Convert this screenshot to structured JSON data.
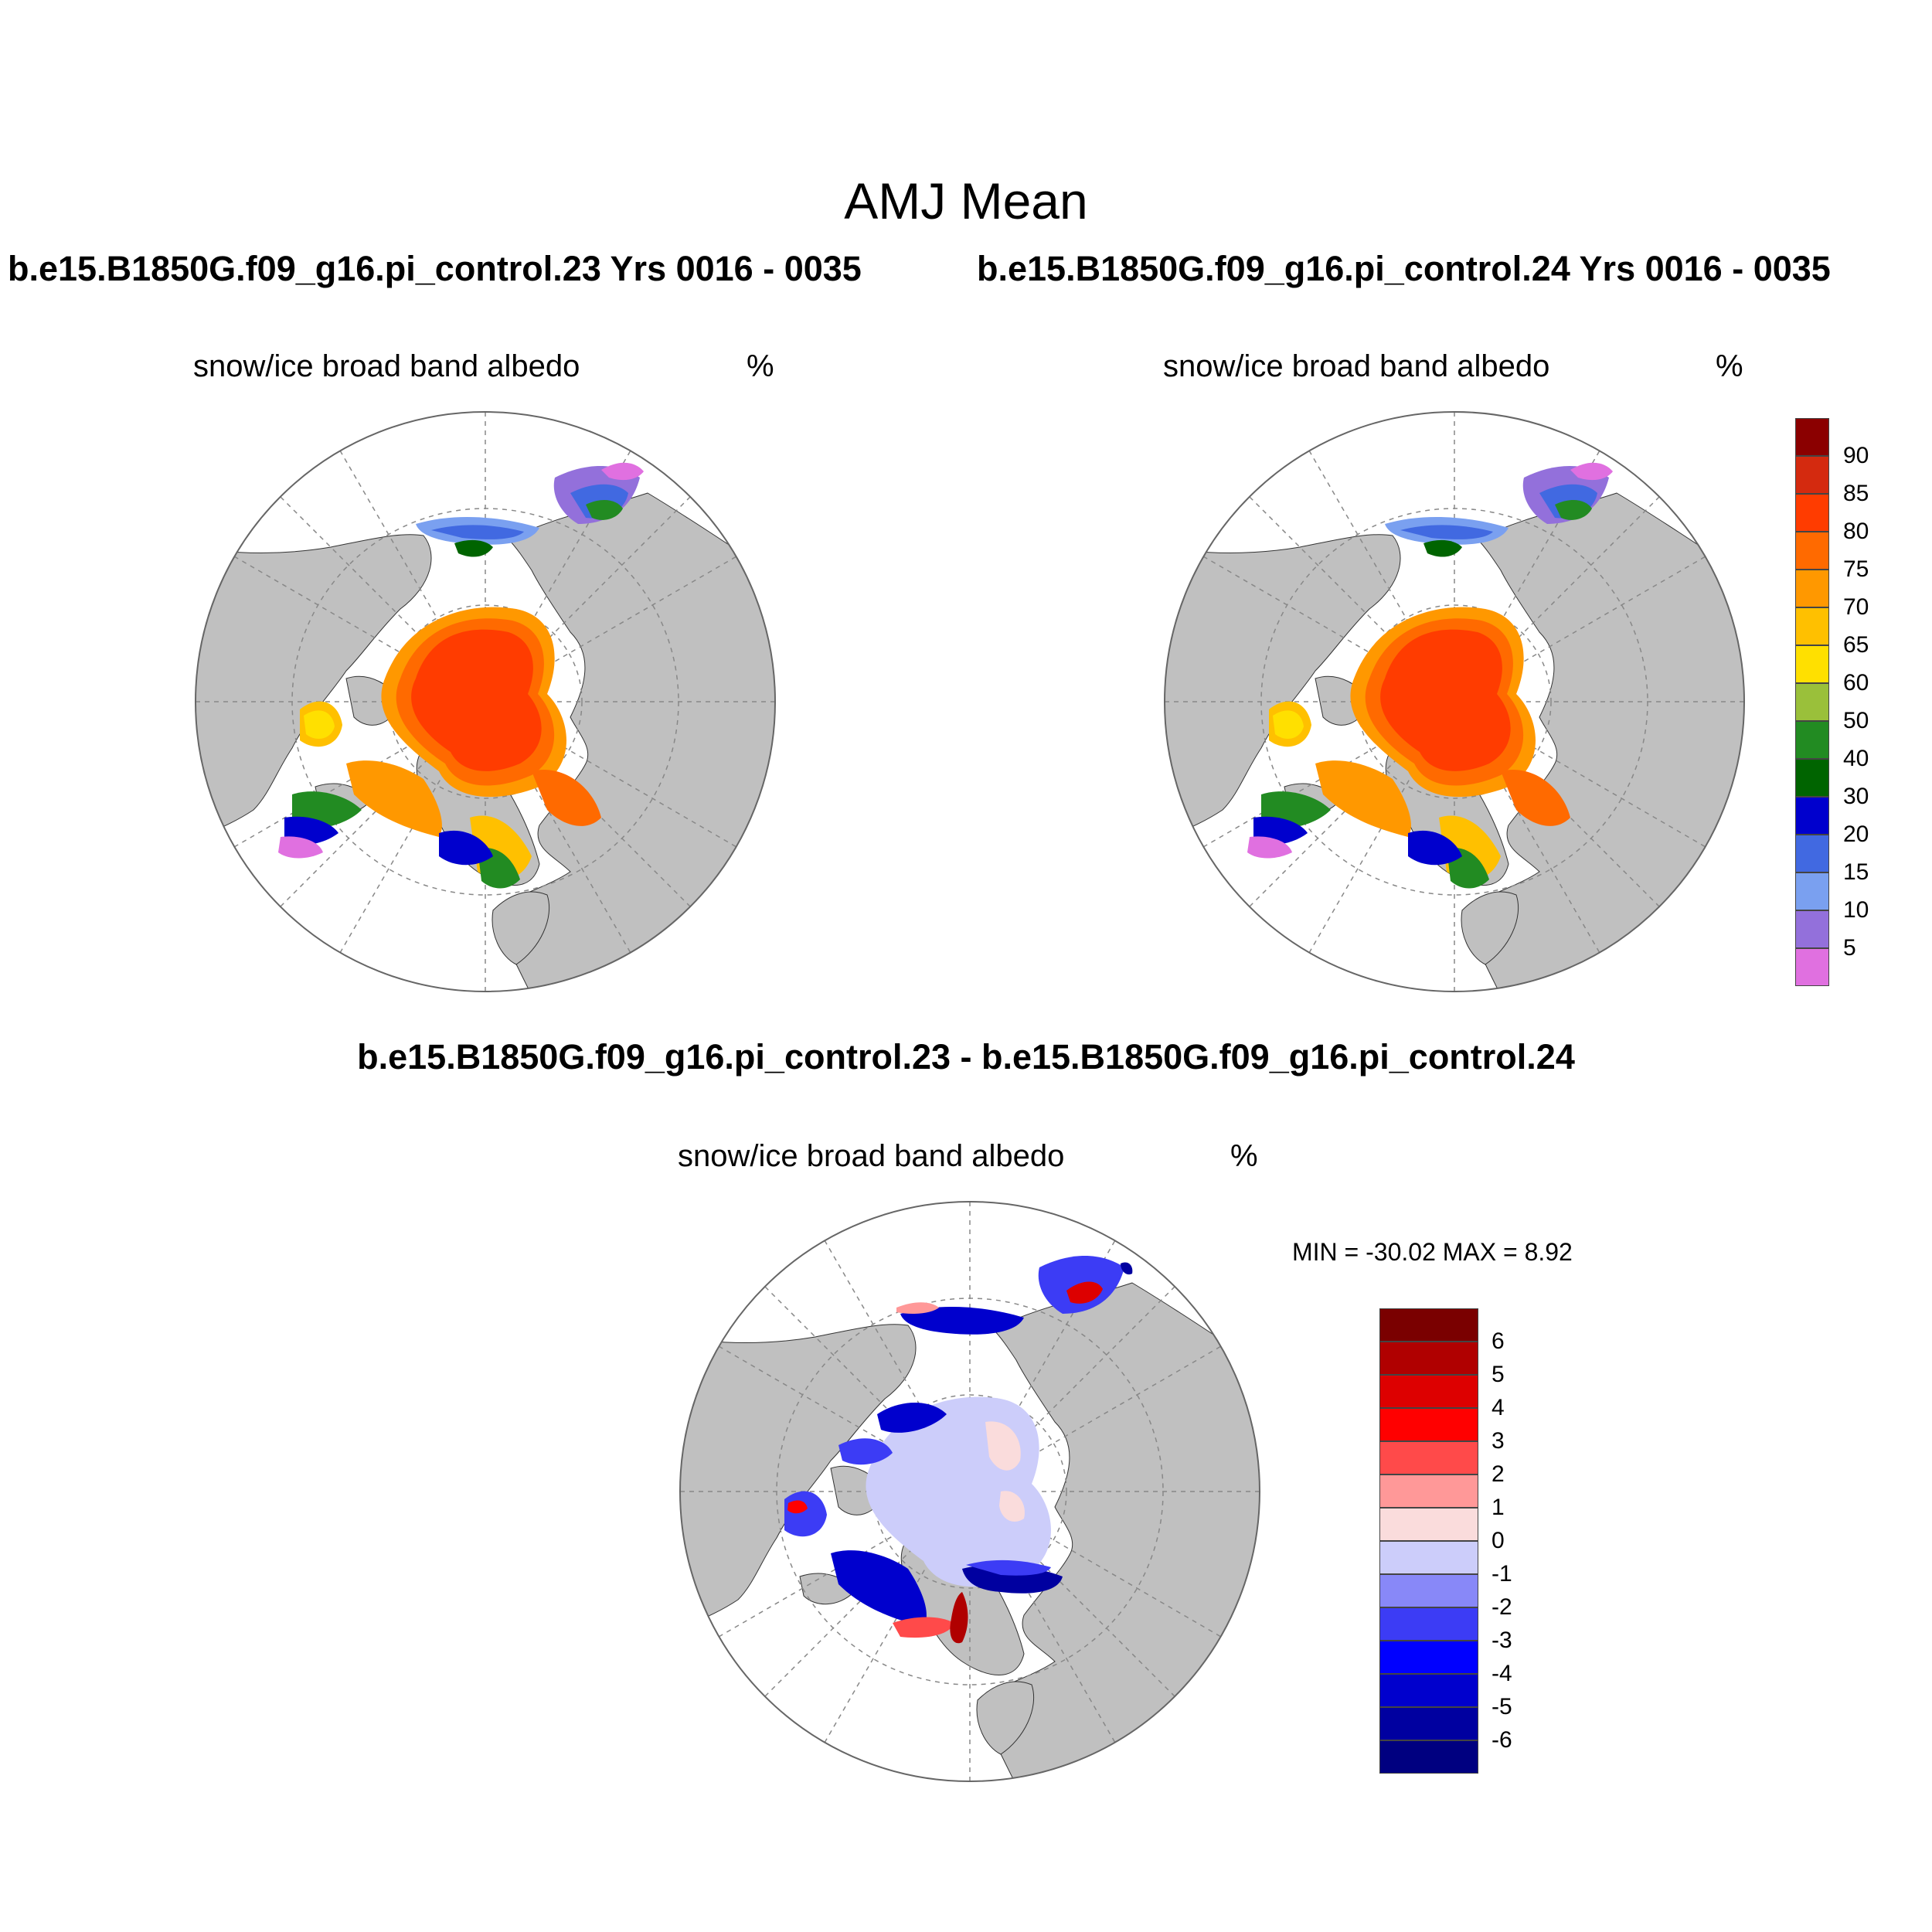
{
  "main_title": "AMJ Mean",
  "panel_top_left": {
    "case_title": "b.e15.B1850G.f09_g16.pi_control.23  Yrs 0016 - 0035",
    "variable": "snow/ice broad band albedo",
    "units": "%"
  },
  "panel_top_right": {
    "case_title": "b.e15.B1850G.f09_g16.pi_control.24  Yrs 0016 - 0035",
    "variable": "snow/ice broad band albedo",
    "units": "%"
  },
  "panel_diff": {
    "case_title": "b.e15.B1850G.f09_g16.pi_control.23 - b.e15.B1850G.f09_g16.pi_control.24",
    "variable": "snow/ice broad band albedo",
    "units": "%",
    "minmax": "MIN = -30.02 MAX =   8.92"
  },
  "colorbar_albedo": {
    "labels": [
      "90",
      "85",
      "80",
      "75",
      "70",
      "65",
      "60",
      "50",
      "40",
      "30",
      "20",
      "15",
      "10",
      "5"
    ],
    "colors": [
      "#8b0000",
      "#d42a0f",
      "#ff3c00",
      "#ff6a00",
      "#ff9800",
      "#ffc000",
      "#ffe000",
      "#9ac03a",
      "#228b22",
      "#006400",
      "#0000cd",
      "#4169e1",
      "#7aa0f0",
      "#9370db",
      "#e070e0"
    ]
  },
  "colorbar_diff": {
    "labels": [
      "6",
      "5",
      "4",
      "3",
      "2",
      "1",
      "0",
      "-1",
      "-2",
      "-3",
      "-4",
      "-5",
      "-6"
    ],
    "colors": [
      "#7a0000",
      "#b00000",
      "#dd0000",
      "#ff0000",
      "#ff4a4a",
      "#ff9898",
      "#fadcdc",
      "#cccdfa",
      "#8888f8",
      "#3c3cf5",
      "#0000ff",
      "#0000cd",
      "#0000a0",
      "#000080"
    ]
  },
  "map_colors": {
    "land": "#c0c0c0",
    "ocean": "#ffffff",
    "frame": "#666666",
    "grid": "#888888"
  }
}
